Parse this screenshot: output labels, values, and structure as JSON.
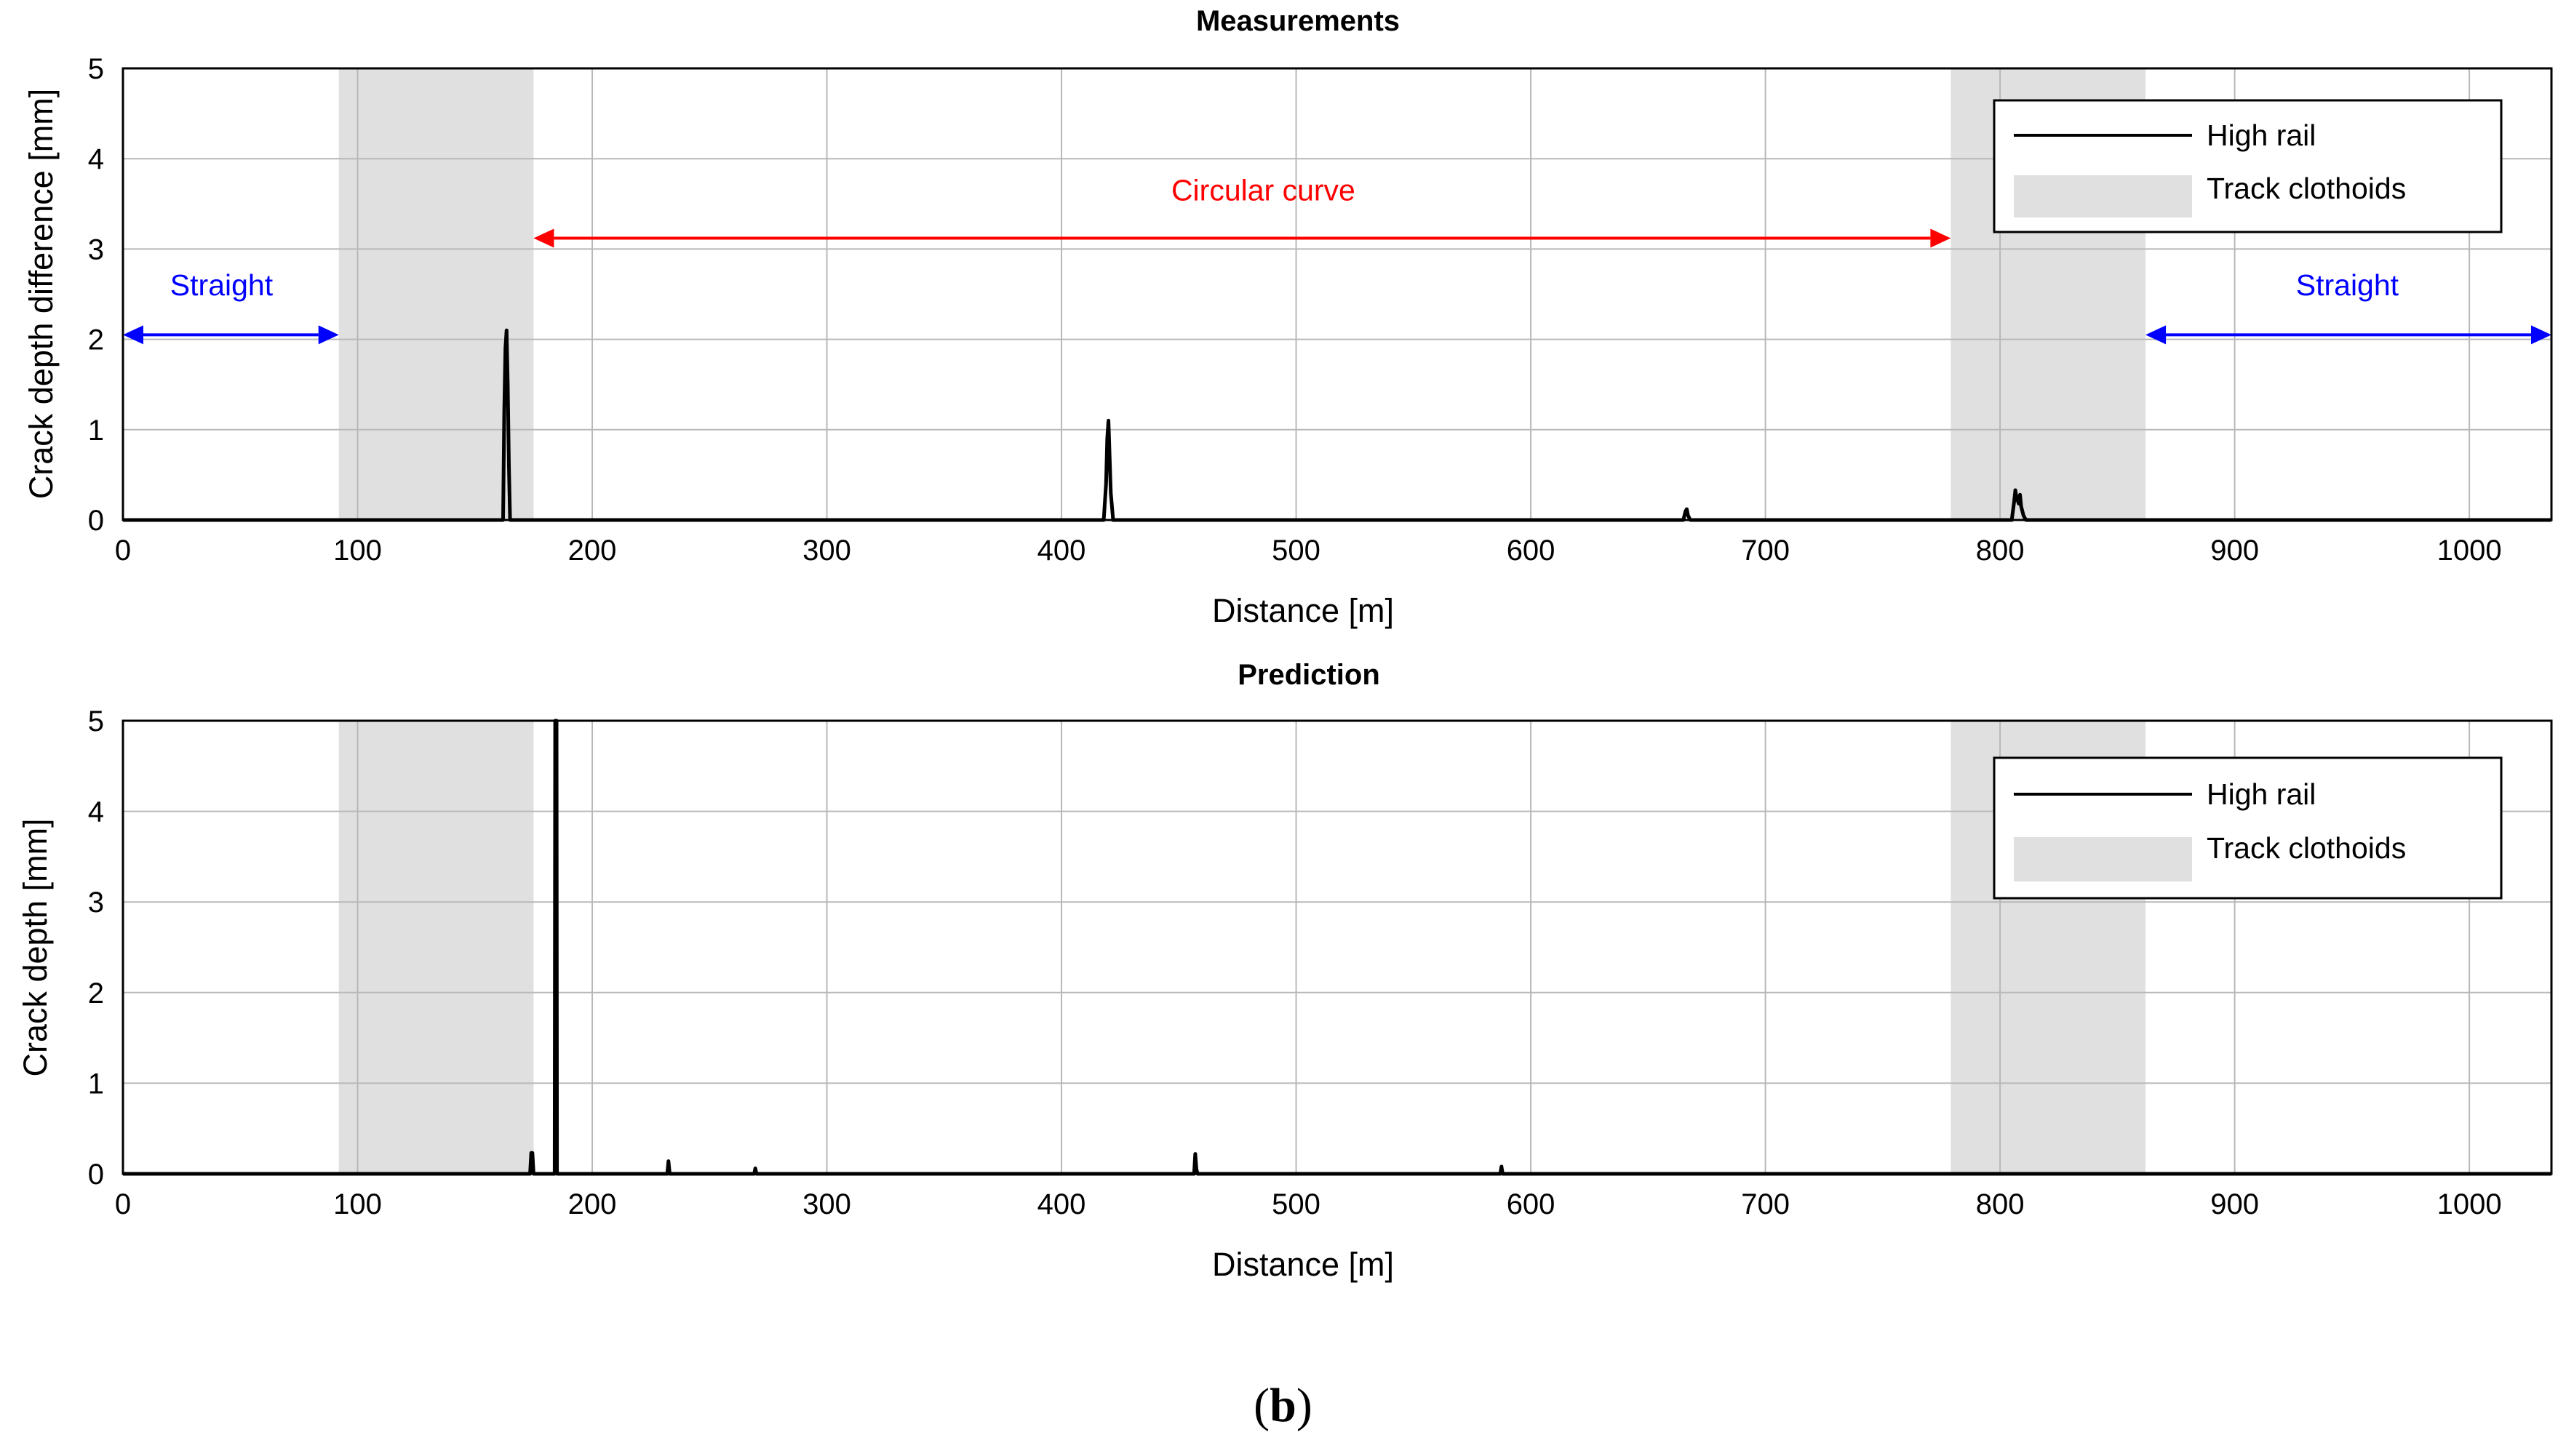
{
  "caption": {
    "open": "(",
    "letter": "b",
    "close": ")"
  },
  "chart_data": [
    {
      "type": "line",
      "title": "Measurements",
      "xlabel": "Distance [m]",
      "ylabel": "Crack depth difference [mm]",
      "xlim": [
        0,
        1035
      ],
      "ylim": [
        0,
        5
      ],
      "xticks": [
        0,
        100,
        200,
        300,
        400,
        500,
        600,
        700,
        800,
        900,
        1000
      ],
      "yticks": [
        0,
        1,
        2,
        3,
        4,
        5
      ],
      "grid": true,
      "legend_position": "top-right",
      "series": [
        {
          "name": "High rail",
          "color": "#000000",
          "x": [
            0,
            162,
            162.5,
            163,
            163.5,
            164,
            164.5,
            165,
            418,
            419,
            419.5,
            420,
            420.5,
            421,
            422,
            665,
            666,
            666.5,
            667,
            668,
            805,
            806,
            806.5,
            807,
            808,
            808.5,
            809,
            810,
            811,
            1035
          ],
          "y": [
            0,
            0,
            1.2,
            1.9,
            2.1,
            1.5,
            0.6,
            0,
            0,
            0.4,
            0.9,
            1.1,
            0.7,
            0.3,
            0,
            0,
            0.1,
            0.12,
            0.05,
            0,
            0,
            0.2,
            0.33,
            0.25,
            0.18,
            0.28,
            0.15,
            0.05,
            0,
            0
          ]
        }
      ],
      "regions": {
        "name": "Track clothoids",
        "color": "#e0e0e0",
        "spans": [
          [
            92,
            175
          ],
          [
            779,
            862
          ]
        ]
      },
      "annotations": [
        {
          "text": "Straight",
          "color": "#0000ff",
          "from": 0,
          "to": 92,
          "y": 2.05,
          "label_x": 42,
          "label_y": 2.6
        },
        {
          "text": "Circular curve",
          "color": "#ff0000",
          "from": 175,
          "to": 779,
          "y": 3.12,
          "label_x": 486,
          "label_y": 3.65
        },
        {
          "text": "Straight",
          "color": "#0000ff",
          "from": 862,
          "to": 1035,
          "y": 2.05,
          "label_x": 948,
          "label_y": 2.6
        }
      ]
    },
    {
      "type": "line",
      "title": "Prediction",
      "xlabel": "Distance [m]",
      "ylabel": "Crack depth [mm]",
      "xlim": [
        0,
        1035
      ],
      "ylim": [
        0,
        5
      ],
      "xticks": [
        0,
        100,
        200,
        300,
        400,
        500,
        600,
        700,
        800,
        900,
        1000
      ],
      "yticks": [
        0,
        1,
        2,
        3,
        4,
        5
      ],
      "grid": true,
      "legend_position": "top-right",
      "series": [
        {
          "name": "High rail",
          "color": "#000000",
          "x": [
            0,
            173.5,
            174,
            174.5,
            175,
            184,
            184.2,
            184.8,
            185,
            232,
            232.5,
            233,
            269,
            269.5,
            270,
            456.5,
            457,
            457.5,
            458,
            587,
            587.5,
            588,
            1035
          ],
          "y": [
            0,
            0,
            0.23,
            0.23,
            0,
            0,
            5,
            5,
            0,
            0,
            0.14,
            0,
            0,
            0.06,
            0,
            0,
            0.22,
            0.05,
            0,
            0,
            0.08,
            0,
            0
          ]
        }
      ],
      "regions": {
        "name": "Track clothoids",
        "color": "#e0e0e0",
        "spans": [
          [
            92,
            175
          ],
          [
            779,
            862
          ]
        ]
      }
    }
  ]
}
